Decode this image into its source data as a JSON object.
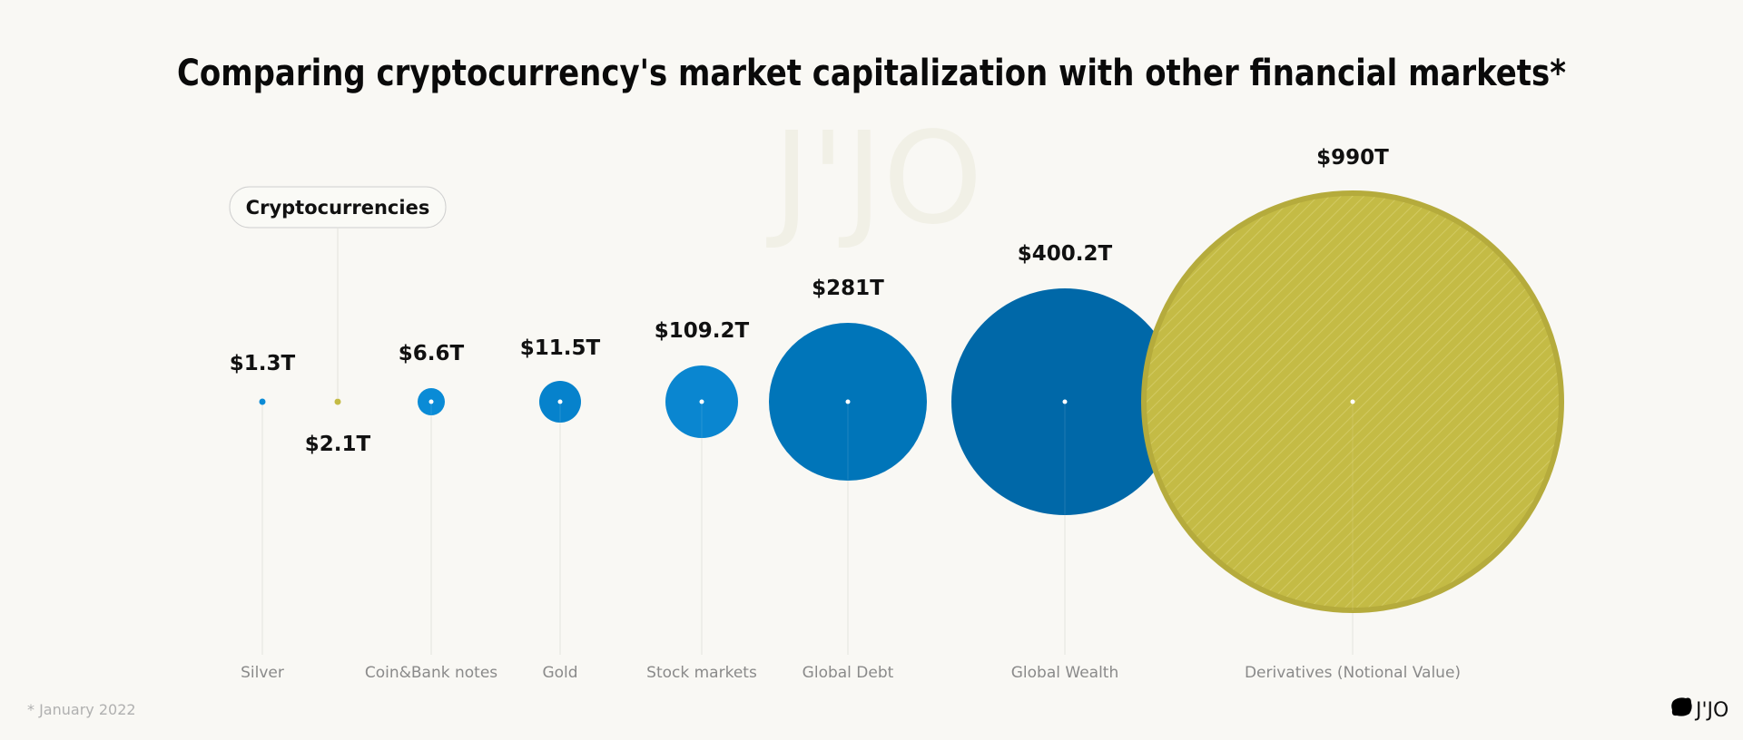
{
  "chart_data": {
    "type": "bubble",
    "title": "Comparing cryptocurrency's market capitalization with other financial markets*",
    "unit": "trillion USD",
    "categories": [
      "Silver",
      "Cryptocurrencies",
      "Coin&Bank notes",
      "Gold",
      "Stock markets",
      "Global Debt",
      "Global Wealth",
      "Derivatives (Notional Value)"
    ],
    "values": [
      1.3,
      2.1,
      6.6,
      11.5,
      109.2,
      281,
      400.2,
      990
    ],
    "value_labels": [
      "$1.3T",
      "$2.1T",
      "$6.6T",
      "$11.5T",
      "$109.2T",
      "$281T",
      "$400.2T",
      "$990T"
    ],
    "colors": [
      "#0a8bd6",
      "#c4bb45",
      "#0a8bd6",
      "#0682cc",
      "#0a86d0",
      "#0075b9",
      "#0068a8",
      "#c4bb45"
    ],
    "callout": "Cryptocurrencies",
    "footnote": "* January 2022",
    "grid": false,
    "legend": "none"
  },
  "brand": {
    "logo_text": "J'JO",
    "watermark_text": "J'JO"
  },
  "background": "#f9f8f4"
}
